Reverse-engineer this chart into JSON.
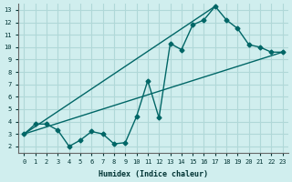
{
  "xlabel": "Humidex (Indice chaleur)",
  "ylabel": "",
  "bg_color": "#d0eeee",
  "grid_color": "#b0d8d8",
  "line_color": "#006666",
  "xlim": [
    -0.5,
    23.5
  ],
  "ylim": [
    1.5,
    13.5
  ],
  "xticks": [
    0,
    1,
    2,
    3,
    4,
    5,
    6,
    7,
    8,
    9,
    10,
    11,
    12,
    13,
    14,
    15,
    16,
    17,
    18,
    19,
    20,
    21,
    22,
    23
  ],
  "yticks": [
    2,
    3,
    4,
    5,
    6,
    7,
    8,
    9,
    10,
    11,
    12,
    13
  ],
  "line1_x": [
    0,
    1,
    2,
    3,
    4,
    5,
    6,
    7,
    8,
    9,
    10,
    11,
    12,
    13,
    14,
    15,
    16,
    17,
    18,
    19,
    20,
    21,
    22,
    23
  ],
  "line1_y": [
    3,
    3.8,
    3.8,
    3.3,
    2.0,
    2.5,
    3.2,
    3.0,
    2.2,
    2.3,
    4.4,
    7.3,
    4.3,
    10.3,
    9.8,
    11.8,
    12.2,
    13.3,
    12.2,
    11.5,
    10.2,
    10.0,
    9.6,
    9.6
  ],
  "line2_x": [
    0,
    23
  ],
  "line2_y": [
    3,
    9.6
  ],
  "line3_x": [
    0,
    17
  ],
  "line3_y": [
    3,
    13.3
  ]
}
